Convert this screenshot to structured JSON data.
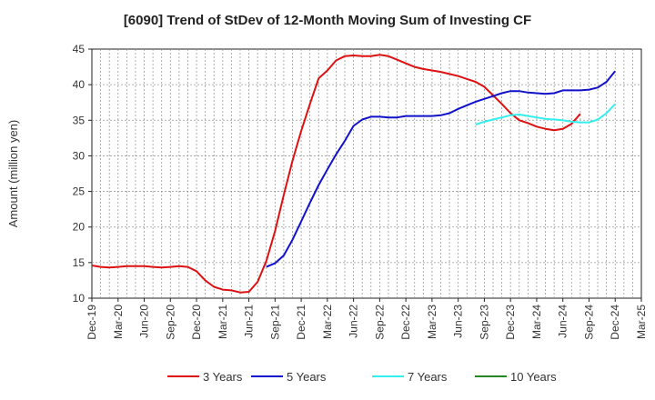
{
  "chart_data": {
    "type": "line",
    "title": "[6090]  Trend of StDev of 12-Month Moving Sum of Investing CF",
    "xlabel": "",
    "ylabel": "Amount (million yen)",
    "ylim": [
      10,
      45
    ],
    "yticks": [
      10,
      15,
      20,
      25,
      30,
      35,
      40,
      45
    ],
    "x_start": "Dec-19",
    "x_tick_labels": [
      "Dec-19",
      "Mar-20",
      "Jun-20",
      "Sep-20",
      "Dec-20",
      "Mar-21",
      "Jun-21",
      "Sep-21",
      "Dec-21",
      "Mar-22",
      "Jun-22",
      "Sep-22",
      "Dec-22",
      "Mar-23",
      "Jun-23",
      "Sep-23",
      "Dec-23",
      "Mar-24",
      "Jun-24",
      "Sep-24",
      "Dec-24",
      "Mar-25"
    ],
    "grid": true,
    "legend_position": "bottom",
    "series": [
      {
        "name": "3 Years",
        "color": "#dd1111",
        "start": "Dec-19",
        "values": [
          14.6,
          14.4,
          14.3,
          14.4,
          14.5,
          14.5,
          14.5,
          14.4,
          14.3,
          14.4,
          14.5,
          14.4,
          13.8,
          12.5,
          11.6,
          11.2,
          11.1,
          10.8,
          10.9,
          12.3,
          15.2,
          19.4,
          24.5,
          29.3,
          33.5,
          37.3,
          40.9,
          42.0,
          43.4,
          44.0,
          44.1,
          44.0,
          44.0,
          44.2,
          44.0,
          43.5,
          43.0,
          42.5,
          42.2,
          42.0,
          41.8,
          41.5,
          41.2,
          40.8,
          40.4,
          39.7,
          38.5,
          37.3,
          36.0,
          35.0,
          34.6,
          34.1,
          33.8,
          33.6,
          33.8,
          34.5,
          35.9
        ]
      },
      {
        "name": "5 Years",
        "color": "#1111cc",
        "start": "Aug-21",
        "values": [
          14.4,
          14.9,
          16.0,
          18.2,
          20.8,
          23.4,
          25.9,
          28.1,
          30.2,
          32.1,
          34.2,
          35.1,
          35.5,
          35.5,
          35.4,
          35.4,
          35.6,
          35.6,
          35.6,
          35.6,
          35.7,
          36.0,
          36.6,
          37.1,
          37.6,
          38.0,
          38.4,
          38.8,
          39.1,
          39.1,
          38.9,
          38.8,
          38.7,
          38.8,
          39.2,
          39.2,
          39.2,
          39.3,
          39.6,
          40.4,
          41.9
        ]
      },
      {
        "name": "7 Years",
        "color": "#33eeee",
        "start": "Aug-23",
        "values": [
          34.4,
          34.8,
          35.1,
          35.4,
          35.7,
          35.8,
          35.6,
          35.4,
          35.2,
          35.1,
          35.0,
          34.8,
          34.7,
          34.7,
          35.1,
          36.0,
          37.3
        ]
      },
      {
        "name": "10 Years",
        "color": "#228822",
        "start": "",
        "values": []
      }
    ]
  }
}
